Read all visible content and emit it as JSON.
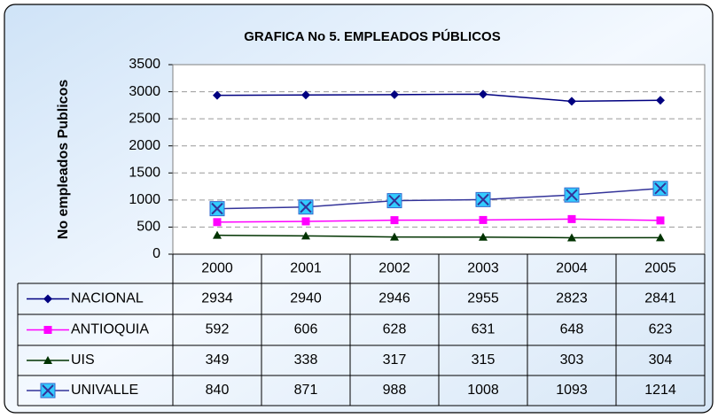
{
  "chart_data": {
    "type": "line",
    "title": "GRAFICA No 5. EMPLEADOS PÚBLICOS",
    "y_label": "No empleados Publicos",
    "categories": [
      "2000",
      "2001",
      "2002",
      "2003",
      "2004",
      "2005"
    ],
    "series": [
      {
        "name": "NACIONAL",
        "color": "#000080",
        "marker": "diamond",
        "marker_color": "#000080",
        "values": [
          2934,
          2940,
          2946,
          2955,
          2823,
          2841
        ]
      },
      {
        "name": "ANTIOQUIA",
        "color": "#ff00ff",
        "marker": "square",
        "marker_color": "#ff00ff",
        "values": [
          592,
          606,
          628,
          631,
          648,
          623
        ]
      },
      {
        "name": "UIS",
        "color": "#003300",
        "marker": "triangle",
        "marker_color": "#003300",
        "values": [
          349,
          338,
          317,
          315,
          303,
          304
        ]
      },
      {
        "name": "UNIVALLE",
        "color": "#333399",
        "marker": "xsquare",
        "marker_color": "#33ccff",
        "values": [
          840,
          871,
          988,
          1008,
          1093,
          1214
        ]
      }
    ],
    "ylim": [
      0,
      3500
    ],
    "yticks": [
      0,
      500,
      1000,
      1500,
      2000,
      2500,
      3000,
      3500
    ],
    "grid": true,
    "data_table": true
  }
}
